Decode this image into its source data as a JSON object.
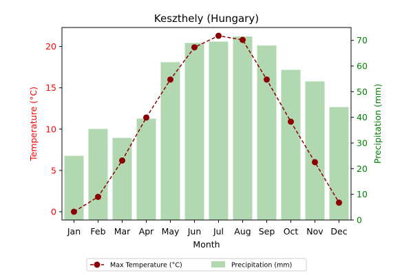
{
  "chart_data": {
    "type": "bar",
    "title": "Keszthely (Hungary)",
    "xlabel": "Month",
    "categories": [
      "Jan",
      "Feb",
      "Mar",
      "Apr",
      "May",
      "Jun",
      "Jul",
      "Aug",
      "Sep",
      "Oct",
      "Nov",
      "Dec"
    ],
    "left_axis": {
      "label": "Temperature (°C)",
      "color": "#ff0000",
      "ylim": [
        -1,
        22.3
      ],
      "ticks": [
        0,
        5,
        10,
        15,
        20
      ]
    },
    "right_axis": {
      "label": "Precipitation (mm)",
      "color": "#008000",
      "ylim": [
        0,
        75
      ],
      "ticks": [
        0,
        10,
        20,
        30,
        40,
        50,
        60,
        70
      ]
    },
    "series": [
      {
        "name": "Max Temperature (°C)",
        "type": "line",
        "axis": "left",
        "color": "#8b0000",
        "line_style": "dashed",
        "marker": "circle",
        "values": [
          0.0,
          1.8,
          6.2,
          11.4,
          16.0,
          19.9,
          21.3,
          20.8,
          16.0,
          10.9,
          6.0,
          1.1
        ]
      },
      {
        "name": "Precipitation (mm)",
        "type": "bar",
        "axis": "right",
        "color": "#b2d8b2",
        "values": [
          25.0,
          35.5,
          32.0,
          39.5,
          61.5,
          69.0,
          69.5,
          71.5,
          68.0,
          58.5,
          54.0,
          44.0
        ]
      }
    ],
    "legend": {
      "placement": "bottom-center",
      "entries": [
        "Max Temperature (°C)",
        "Precipitation (mm)"
      ]
    },
    "grid": false
  }
}
